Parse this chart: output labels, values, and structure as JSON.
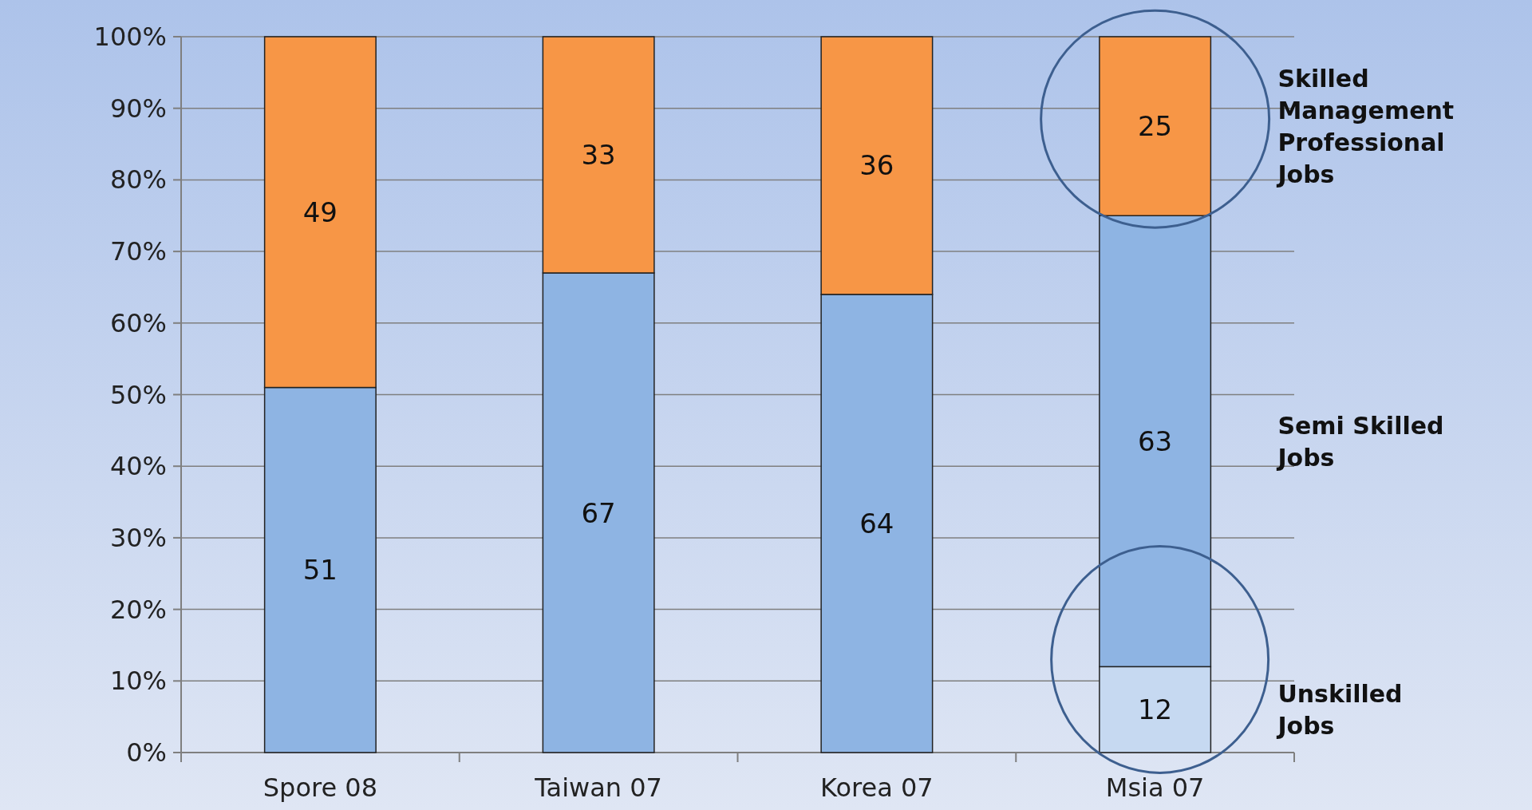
{
  "chart_data": {
    "type": "bar",
    "stacked": true,
    "categories": [
      "Spore 08",
      "Taiwan 07",
      "Korea 07",
      "Msia 07"
    ],
    "ylim": [
      0,
      100
    ],
    "yticks": [
      {
        "value": 0,
        "label": "0%"
      },
      {
        "value": 10,
        "label": "10%"
      },
      {
        "value": 20,
        "label": "20%"
      },
      {
        "value": 30,
        "label": "30%"
      },
      {
        "value": 40,
        "label": "40%"
      },
      {
        "value": 50,
        "label": "50%"
      },
      {
        "value": 60,
        "label": "60%"
      },
      {
        "value": 70,
        "label": "70%"
      },
      {
        "value": 80,
        "label": "80%"
      },
      {
        "value": 90,
        "label": "90%"
      },
      {
        "value": 100,
        "label": "100%"
      }
    ],
    "grid": "y",
    "series": [
      {
        "name": "Unskilled Jobs",
        "color": "#c6d9f1",
        "values": [
          0,
          0,
          0,
          12
        ],
        "value_labels": [
          null,
          null,
          null,
          "12"
        ]
      },
      {
        "name": "Semi Skilled Jobs",
        "color": "#8eb4e3",
        "values": [
          51,
          67,
          64,
          63
        ],
        "value_labels": [
          "51",
          "67",
          "64",
          "63"
        ]
      },
      {
        "name": "Skilled Management Professional Jobs",
        "color": "#f79646",
        "values": [
          49,
          33,
          36,
          25
        ],
        "value_labels": [
          "49",
          "33",
          "36",
          "25"
        ]
      }
    ]
  }
}
